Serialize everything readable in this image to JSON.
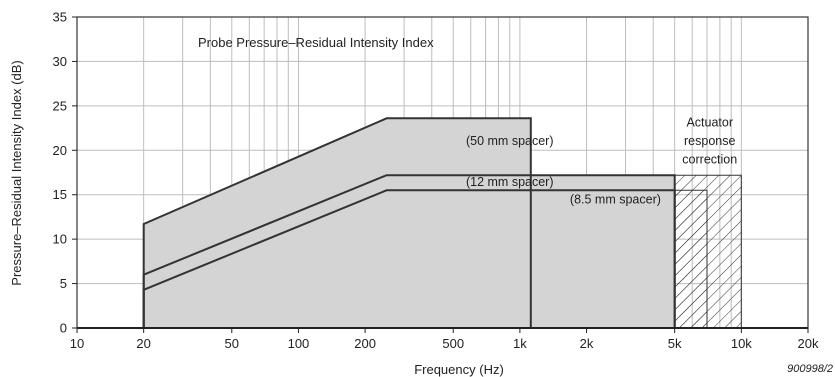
{
  "chart_data": {
    "type": "area",
    "title": "Probe Pressure–Residual Intensity Index",
    "xlabel": "Frequency (Hz)",
    "ylabel": "Pressure–Residual Intensity Index (dB)",
    "x_scale": "log",
    "xlim": [
      10,
      20000
    ],
    "ylim": [
      0,
      35
    ],
    "grid": true,
    "x_ticks": [
      {
        "value": 10,
        "label": "10"
      },
      {
        "value": 20,
        "label": "20"
      },
      {
        "value": 50,
        "label": "50"
      },
      {
        "value": 100,
        "label": "100"
      },
      {
        "value": 200,
        "label": "200"
      },
      {
        "value": 500,
        "label": "500"
      },
      {
        "value": 1000,
        "label": "1k"
      },
      {
        "value": 2000,
        "label": "2k"
      },
      {
        "value": 5000,
        "label": "5k"
      },
      {
        "value": 10000,
        "label": "10k"
      },
      {
        "value": 20000,
        "label": "20k"
      }
    ],
    "y_ticks": [
      0,
      5,
      10,
      15,
      20,
      25,
      30,
      35
    ],
    "series": [
      {
        "name": "(50 mm spacer)",
        "points": [
          [
            20,
            0
          ],
          [
            20,
            11.7
          ],
          [
            250,
            23.6
          ],
          [
            1120,
            23.6
          ],
          [
            1120,
            0
          ]
        ]
      },
      {
        "name": "(12 mm spacer)",
        "points": [
          [
            20,
            0
          ],
          [
            20,
            6.0
          ],
          [
            250,
            17.2
          ],
          [
            5000,
            17.2
          ],
          [
            5000,
            0
          ]
        ]
      },
      {
        "name": "(8.5 mm spacer)",
        "points": [
          [
            20,
            0
          ],
          [
            20,
            4.3
          ],
          [
            250,
            15.5
          ],
          [
            5000,
            15.5
          ],
          [
            5000,
            0
          ]
        ]
      }
    ],
    "correction_regions": [
      {
        "points": [
          [
            5000,
            0
          ],
          [
            5000,
            17.2
          ],
          [
            10000,
            17.2
          ],
          [
            10000,
            0
          ]
        ]
      },
      {
        "points": [
          [
            5000,
            0
          ],
          [
            5000,
            15.5
          ],
          [
            7000,
            15.5
          ],
          [
            7000,
            0
          ]
        ]
      }
    ],
    "annotations": [
      {
        "text": "(50 mm spacer)",
        "x": 900,
        "y": 20.6
      },
      {
        "text": "(12 mm spacer)",
        "x": 900,
        "y": 16.0
      },
      {
        "text": "(8.5 mm spacer)",
        "x": 2700,
        "y": 14.0
      },
      {
        "text": "Actuator",
        "x": 7200,
        "y": 22.7
      },
      {
        "text": "response",
        "x": 7200,
        "y": 20.6
      },
      {
        "text": "correction",
        "x": 7200,
        "y": 18.5
      }
    ],
    "figure_id": "900998/2"
  }
}
